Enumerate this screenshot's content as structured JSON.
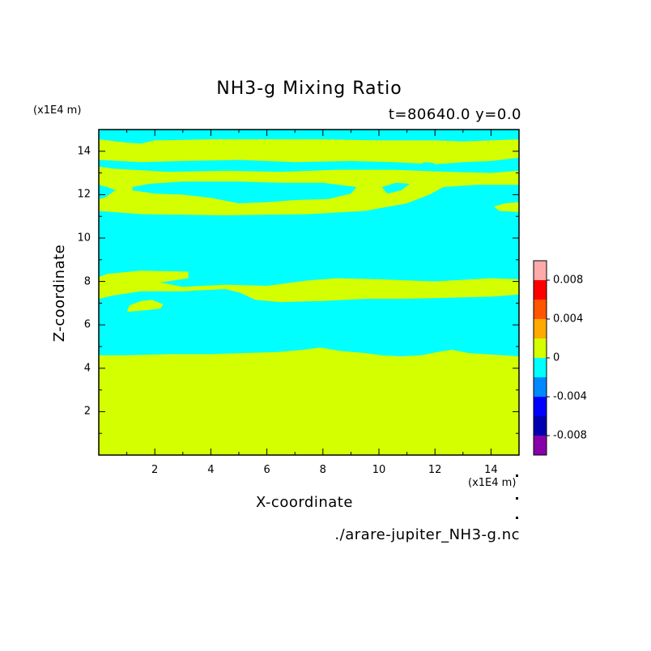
{
  "chart_data": {
    "type": "heatmap",
    "title": "NH3-g Mixing Ratio",
    "subtitle": "t=80640.0 y=0.0",
    "xlabel": "X-coordinate",
    "ylabel": "Z-coordinate",
    "x_unit_label": "(x1E4 m)",
    "y_unit_label": "(x1E4 m)",
    "xlim": [
      0,
      15
    ],
    "ylim": [
      0,
      15
    ],
    "x_ticks": [
      "2",
      "4",
      "6",
      "8",
      "10",
      "12",
      "14"
    ],
    "y_ticks": [
      "2",
      "4",
      "6",
      "8",
      "10",
      "12",
      "14"
    ],
    "source_label": "./arare-jupiter_NH3-g.nc",
    "colors": {
      "positive": "#d4ff00",
      "negative": "#00ffff"
    },
    "regions_desc": "Approximate contour boundaries (x, z in 1E4 m). Value 0 to 0.002 (yellow-green) vs -0.002 to 0 (cyan).",
    "background_level": "-0.002 to 0",
    "regions": [
      {
        "level": "0 to 0.002",
        "points": [
          [
            0,
            0
          ],
          [
            15,
            0
          ],
          [
            15,
            4.55
          ],
          [
            14.4,
            4.6
          ],
          [
            13.2,
            4.7
          ],
          [
            12.6,
            4.85
          ],
          [
            12.1,
            4.75
          ],
          [
            11.5,
            4.6
          ],
          [
            10.8,
            4.55
          ],
          [
            10.1,
            4.6
          ],
          [
            9.5,
            4.7
          ],
          [
            8.6,
            4.8
          ],
          [
            7.9,
            4.95
          ],
          [
            7.3,
            4.85
          ],
          [
            6.4,
            4.75
          ],
          [
            5.2,
            4.7
          ],
          [
            4.0,
            4.65
          ],
          [
            2.5,
            4.65
          ],
          [
            1.0,
            4.6
          ],
          [
            0,
            4.6
          ]
        ]
      },
      {
        "level": "0 to 0.002",
        "points": [
          [
            0,
            7.2
          ],
          [
            0.5,
            7.35
          ],
          [
            1.5,
            7.55
          ],
          [
            3.0,
            7.55
          ],
          [
            4.5,
            7.65
          ],
          [
            5.0,
            7.5
          ],
          [
            5.6,
            7.15
          ],
          [
            6.5,
            7.05
          ],
          [
            8.0,
            7.1
          ],
          [
            9.5,
            7.2
          ],
          [
            11.0,
            7.2
          ],
          [
            12.5,
            7.25
          ],
          [
            14.0,
            7.3
          ],
          [
            15,
            7.4
          ],
          [
            15,
            8.1
          ],
          [
            14.0,
            8.15
          ],
          [
            12.0,
            8.0
          ],
          [
            10.0,
            8.1
          ],
          [
            8.5,
            8.15
          ],
          [
            7.5,
            8.05
          ],
          [
            6.0,
            7.8
          ],
          [
            4.5,
            7.85
          ],
          [
            3.0,
            7.75
          ],
          [
            2.2,
            7.95
          ],
          [
            3.2,
            8.15
          ],
          [
            3.2,
            8.45
          ],
          [
            1.5,
            8.5
          ],
          [
            0.3,
            8.35
          ],
          [
            0,
            8.2
          ]
        ]
      },
      {
        "level": "0 to 0.002",
        "points": [
          [
            1.0,
            6.6
          ],
          [
            1.5,
            6.65
          ],
          [
            2.2,
            6.75
          ],
          [
            2.3,
            6.95
          ],
          [
            1.9,
            7.15
          ],
          [
            1.5,
            7.1
          ],
          [
            1.1,
            6.9
          ]
        ]
      },
      {
        "level": "0 to 0.002",
        "points": [
          [
            0,
            11.25
          ],
          [
            1.5,
            11.1
          ],
          [
            4.5,
            11.05
          ],
          [
            7.5,
            11.1
          ],
          [
            9.5,
            11.25
          ],
          [
            11.0,
            11.6
          ],
          [
            11.8,
            12.0
          ],
          [
            12.3,
            12.35
          ],
          [
            13.5,
            12.45
          ],
          [
            15,
            12.45
          ],
          [
            15,
            13.1
          ],
          [
            14.0,
            13.0
          ],
          [
            12.5,
            13.05
          ],
          [
            10.5,
            13.15
          ],
          [
            8.5,
            13.15
          ],
          [
            6.5,
            13.05
          ],
          [
            4.5,
            13.1
          ],
          [
            2.5,
            13.05
          ],
          [
            0.5,
            13.2
          ],
          [
            0,
            13.3
          ],
          [
            0,
            12.45
          ],
          [
            0.3,
            12.35
          ],
          [
            0.6,
            12.2
          ],
          [
            0.2,
            11.85
          ],
          [
            0,
            11.8
          ]
        ]
      },
      {
        "level": "-0.002 to 0",
        "points": [
          [
            1.2,
            12.2
          ],
          [
            2.0,
            12.05
          ],
          [
            3.0,
            12.0
          ],
          [
            4.0,
            11.85
          ],
          [
            5.0,
            11.6
          ],
          [
            6.0,
            11.65
          ],
          [
            7.0,
            11.75
          ],
          [
            8.2,
            11.8
          ],
          [
            9.0,
            12.05
          ],
          [
            9.2,
            12.35
          ],
          [
            8.0,
            12.55
          ],
          [
            6.5,
            12.55
          ],
          [
            5.0,
            12.6
          ],
          [
            3.0,
            12.6
          ],
          [
            1.8,
            12.5
          ],
          [
            1.2,
            12.35
          ]
        ]
      },
      {
        "level": "-0.002 to 0",
        "points": [
          [
            10.3,
            12.05
          ],
          [
            10.8,
            12.2
          ],
          [
            11.1,
            12.5
          ],
          [
            10.6,
            12.55
          ],
          [
            10.1,
            12.35
          ]
        ]
      },
      {
        "level": "0 to 0.002",
        "points": [
          [
            14.3,
            11.25
          ],
          [
            15,
            11.2
          ],
          [
            15,
            11.65
          ],
          [
            14.5,
            11.6
          ],
          [
            14.1,
            11.45
          ]
        ]
      },
      {
        "level": "0 to 0.002",
        "points": [
          [
            0,
            13.6
          ],
          [
            1.5,
            13.5
          ],
          [
            3.0,
            13.55
          ],
          [
            5.0,
            13.6
          ],
          [
            7.0,
            13.5
          ],
          [
            9.0,
            13.55
          ],
          [
            10.5,
            13.5
          ],
          [
            12.0,
            13.4
          ],
          [
            13.0,
            13.5
          ],
          [
            14.0,
            13.55
          ],
          [
            15,
            13.7
          ],
          [
            15,
            14.55
          ],
          [
            14.0,
            14.5
          ],
          [
            13.0,
            14.45
          ],
          [
            12.0,
            14.5
          ],
          [
            10.0,
            14.5
          ],
          [
            8.0,
            14.55
          ],
          [
            6.0,
            14.55
          ],
          [
            4.0,
            14.55
          ],
          [
            2.0,
            14.5
          ],
          [
            1.5,
            14.35
          ],
          [
            1.0,
            14.4
          ],
          [
            0,
            14.55
          ]
        ]
      },
      {
        "level": "-0.002 to 0",
        "points": [
          [
            11.4,
            13.3
          ],
          [
            11.8,
            13.2
          ],
          [
            12.0,
            13.45
          ],
          [
            11.6,
            13.5
          ]
        ]
      }
    ],
    "colorbar": {
      "levels": [
        {
          "color": "#ffaaaa",
          "range": "0.008 to 0.01"
        },
        {
          "color": "#ff0000",
          "range": "0.006 to 0.008"
        },
        {
          "color": "#ff5500",
          "range": "0.004 to 0.006"
        },
        {
          "color": "#ffaa00",
          "range": "0.002 to 0.004"
        },
        {
          "color": "#d4ff00",
          "range": "0 to 0.002"
        },
        {
          "color": "#00ffff",
          "range": "-0.002 to 0"
        },
        {
          "color": "#0088ff",
          "range": "-0.004 to -0.002"
        },
        {
          "color": "#0000ff",
          "range": "-0.006 to -0.004"
        },
        {
          "color": "#0000b0",
          "range": "-0.008 to -0.006"
        },
        {
          "color": "#8800aa",
          "range": "-0.01 to -0.008"
        }
      ],
      "tick_labels": [
        "0.008",
        "0.004",
        "0",
        "-0.004",
        "-0.008"
      ]
    }
  }
}
